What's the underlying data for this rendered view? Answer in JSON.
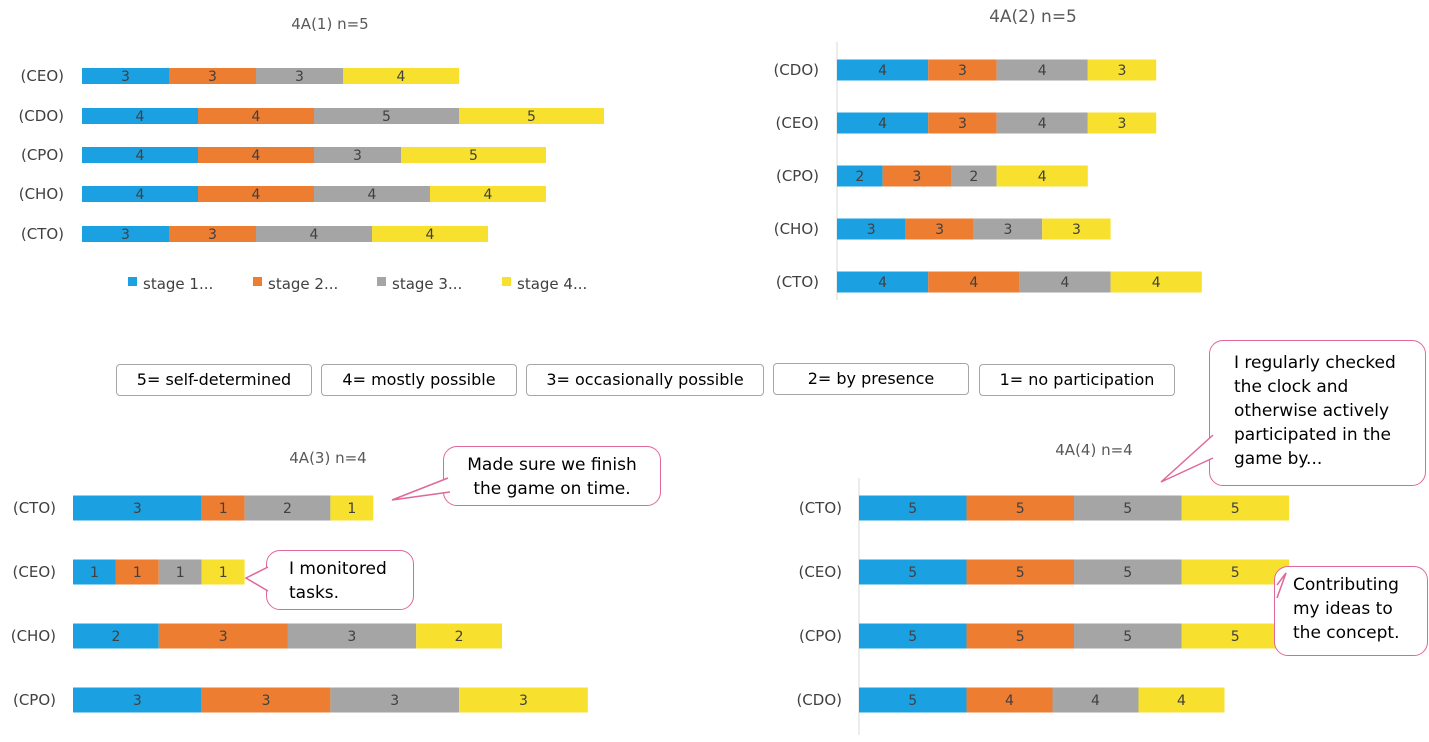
{
  "colors": {
    "stage1": "#1ba1e2",
    "stage2": "#ed7d31",
    "stage3": "#a5a5a5",
    "stage4": "#f7e12e",
    "label": "#404040",
    "axis": "#d9d9d9",
    "callout_border": "#e0679a"
  },
  "chart_data": [
    {
      "type": "bar",
      "orientation": "horizontal",
      "stacked": true,
      "title": "4A(1) n=5",
      "categories": [
        "(CEO)",
        "(CDO)",
        "(CPO)",
        "(CHO)",
        "(CTO)"
      ],
      "series": [
        {
          "name": "stage 1...",
          "values": [
            3,
            4,
            4,
            4,
            3
          ]
        },
        {
          "name": "stage 2...",
          "values": [
            3,
            4,
            4,
            4,
            3
          ]
        },
        {
          "name": "stage 3...",
          "values": [
            3,
            5,
            3,
            4,
            4
          ]
        },
        {
          "name": "stage 4...",
          "values": [
            4,
            5,
            5,
            4,
            4
          ]
        }
      ],
      "legend": [
        "stage 1...",
        "stage 2...",
        "stage 3...",
        "stage 4..."
      ],
      "legend_position": "bottom"
    },
    {
      "type": "bar",
      "orientation": "horizontal",
      "stacked": true,
      "title": "4A(2) n=5",
      "categories": [
        "(CDO)",
        "(CEO)",
        "(CPO)",
        "(CHO)",
        "(CTO)"
      ],
      "series": [
        {
          "name": "stage 1",
          "values": [
            4,
            4,
            2,
            3,
            4
          ]
        },
        {
          "name": "stage 2",
          "values": [
            3,
            3,
            3,
            3,
            4
          ]
        },
        {
          "name": "stage 3",
          "values": [
            4,
            4,
            2,
            3,
            4
          ]
        },
        {
          "name": "stage 4",
          "values": [
            3,
            3,
            4,
            3,
            4
          ]
        }
      ]
    },
    {
      "type": "bar",
      "orientation": "horizontal",
      "stacked": true,
      "title": "4A(3) n=4",
      "categories": [
        "(CTO)",
        "(CEO)",
        "(CHO)",
        "(CPO)"
      ],
      "series": [
        {
          "name": "stage 1",
          "values": [
            3,
            1,
            2,
            3
          ]
        },
        {
          "name": "stage 2",
          "values": [
            1,
            1,
            3,
            3
          ]
        },
        {
          "name": "stage 3",
          "values": [
            2,
            1,
            3,
            3
          ]
        },
        {
          "name": "stage 4",
          "values": [
            1,
            1,
            2,
            3
          ]
        }
      ]
    },
    {
      "type": "bar",
      "orientation": "horizontal",
      "stacked": true,
      "title": "4A(4) n=4",
      "categories": [
        "(CTO)",
        "(CEO)",
        "(CPO)",
        "(CDO)"
      ],
      "series": [
        {
          "name": "stage 1",
          "values": [
            5,
            5,
            5,
            5
          ]
        },
        {
          "name": "stage 2",
          "values": [
            5,
            5,
            5,
            4
          ]
        },
        {
          "name": "stage 3",
          "values": [
            5,
            5,
            5,
            4
          ]
        },
        {
          "name": "stage 4",
          "values": [
            5,
            5,
            5,
            4
          ]
        }
      ]
    }
  ],
  "scale_legend": [
    "5= self-determined",
    "4= mostly possible",
    "3= occasionally possible",
    "2= by presence",
    "1= no participation"
  ],
  "callouts": {
    "finish_on_time": "Made sure we finish the game on time.",
    "monitored_tasks": "I monitored tasks.",
    "checked_clock": "I regularly checked the clock and otherwise actively participated in the game by...",
    "contributing_ideas": "Contributing my ideas to the concept."
  }
}
